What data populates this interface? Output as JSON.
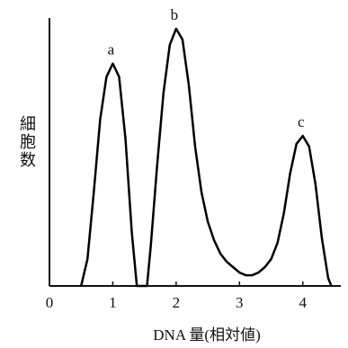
{
  "chart_data": {
    "type": "line",
    "xlabel": "DNA 量(相対値)",
    "ylabel": "細胞数",
    "annotations": [
      "a",
      "b",
      "c"
    ],
    "xlim": [
      0,
      4.6
    ],
    "xticks": [
      0,
      1,
      2,
      3,
      4
    ],
    "ylim": [
      0,
      100
    ],
    "color": "#000000",
    "x": [
      0.5,
      0.6,
      0.7,
      0.8,
      0.9,
      1.0,
      1.1,
      1.2,
      1.3,
      1.38,
      1.54,
      1.6,
      1.7,
      1.8,
      1.9,
      2.0,
      2.1,
      2.2,
      2.3,
      2.4,
      2.5,
      2.6,
      2.7,
      2.8,
      2.9,
      3.0,
      3.1,
      3.2,
      3.3,
      3.4,
      3.5,
      3.6,
      3.7,
      3.8,
      3.9,
      4.0,
      4.1,
      4.2,
      4.3,
      4.4,
      4.45
    ],
    "values": [
      0,
      10,
      35,
      62,
      78,
      83,
      78,
      55,
      20,
      0,
      0,
      15,
      45,
      72,
      90,
      96,
      92,
      75,
      52,
      35,
      24,
      17,
      12,
      9,
      7,
      5,
      4,
      4,
      5,
      7,
      10,
      16,
      27,
      42,
      53,
      56,
      52,
      38,
      18,
      3,
      0
    ]
  }
}
